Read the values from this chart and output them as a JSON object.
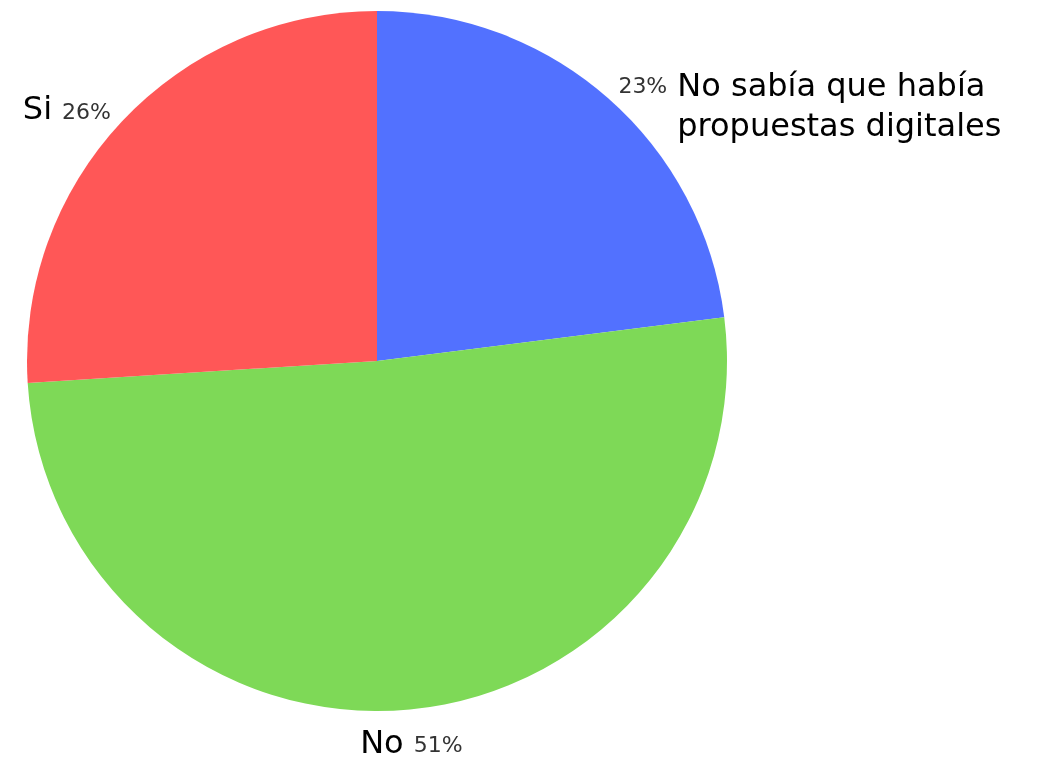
{
  "chart_data": {
    "type": "pie",
    "categories": [
      "No sabía que había propuestas digitales",
      "No",
      "Si"
    ],
    "values": [
      23,
      51,
      26
    ],
    "colors": [
      "#5271ff",
      "#7ed957",
      "#ff5757"
    ],
    "legend": false,
    "value_labels": [
      "23%",
      "51%",
      "26%"
    ]
  }
}
